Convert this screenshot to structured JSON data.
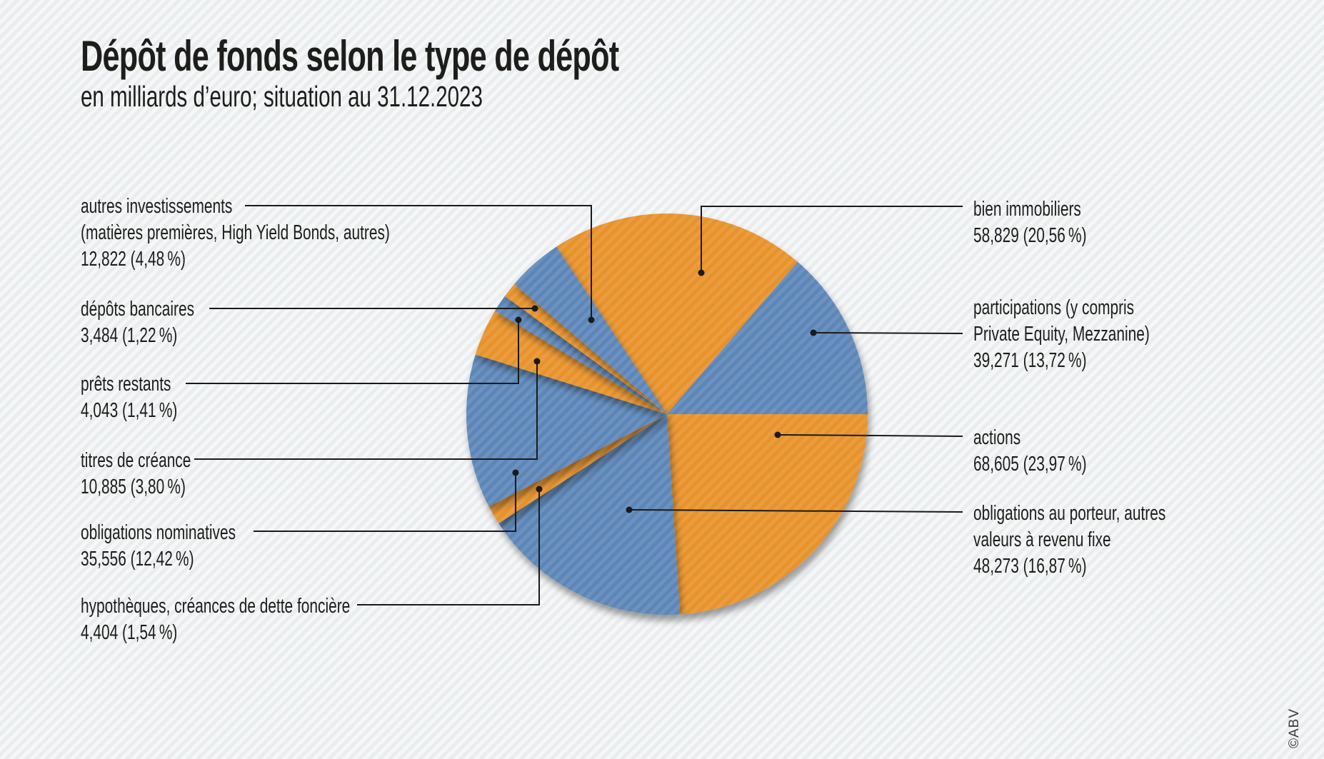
{
  "page": {
    "copyright": "©ABV"
  },
  "chart_data": {
    "type": "pie",
    "title": "Dépôt de fonds selon le type de dépôt",
    "subtitle": "en milliards d’euro; situation au 31.12.2023",
    "unit": "milliards d'euro",
    "date": "31.12.2023",
    "legend_position": "callout-labels",
    "rotation": "clockwise",
    "start_angle_deg": -33.4,
    "palette": {
      "orange": "#E8922B",
      "blue": "#5B86B8"
    },
    "slices": [
      {
        "key": "bien-immobiliers",
        "label_lines": [
          "bien immobiliers"
        ],
        "value": "58,829",
        "pct": 20.56,
        "display": "58,829 (20,56 %)",
        "color": "orange",
        "side": "right"
      },
      {
        "key": "participations",
        "label_lines": [
          "participations (y compris",
          "Private Equity, Mezzanine)"
        ],
        "value": "39,271",
        "pct": 13.72,
        "display": "39,271 (13,72 %)",
        "color": "blue",
        "side": "right"
      },
      {
        "key": "actions",
        "label_lines": [
          "actions"
        ],
        "value": "68,605",
        "pct": 23.97,
        "display": "68,605 (23,97 %)",
        "color": "orange",
        "side": "right"
      },
      {
        "key": "obligations-au-porteur",
        "label_lines": [
          "obligations au porteur, autres",
          "valeurs à revenu fixe"
        ],
        "value": "48,273",
        "pct": 16.87,
        "display": "48,273 (16,87 %)",
        "color": "blue",
        "side": "right"
      },
      {
        "key": "hypotheques",
        "label_lines": [
          "hypothèques, créances de dette foncière"
        ],
        "value": "4,404",
        "pct": 1.54,
        "display": "4,404 (1,54 %)",
        "color": "orange",
        "side": "left"
      },
      {
        "key": "obligations-nominatives",
        "label_lines": [
          "obligations nominatives"
        ],
        "value": "35,556",
        "pct": 12.42,
        "display": "35,556 (12,42 %)",
        "color": "blue",
        "side": "left"
      },
      {
        "key": "titres-de-creance",
        "label_lines": [
          "titres de créance"
        ],
        "value": "10,885",
        "pct": 3.8,
        "display": "10,885 (3,80 %)",
        "color": "orange",
        "side": "left"
      },
      {
        "key": "prets-restants",
        "label_lines": [
          "prêts restants"
        ],
        "value": "4,043",
        "pct": 1.41,
        "display": "4,043 (1,41 %)",
        "color": "blue",
        "side": "left"
      },
      {
        "key": "depots-bancaires",
        "label_lines": [
          "dépôts bancaires"
        ],
        "value": "3,484",
        "pct": 1.22,
        "display": "3,484 (1,22 %)",
        "color": "orange",
        "side": "left"
      },
      {
        "key": "autres-investissements",
        "label_lines": [
          "autres investissements",
          "(matières premières, High Yield Bonds, autres)"
        ],
        "value": "12,822",
        "pct": 4.48,
        "display": "12,822 (4,48 %)",
        "color": "blue",
        "side": "left"
      }
    ]
  }
}
